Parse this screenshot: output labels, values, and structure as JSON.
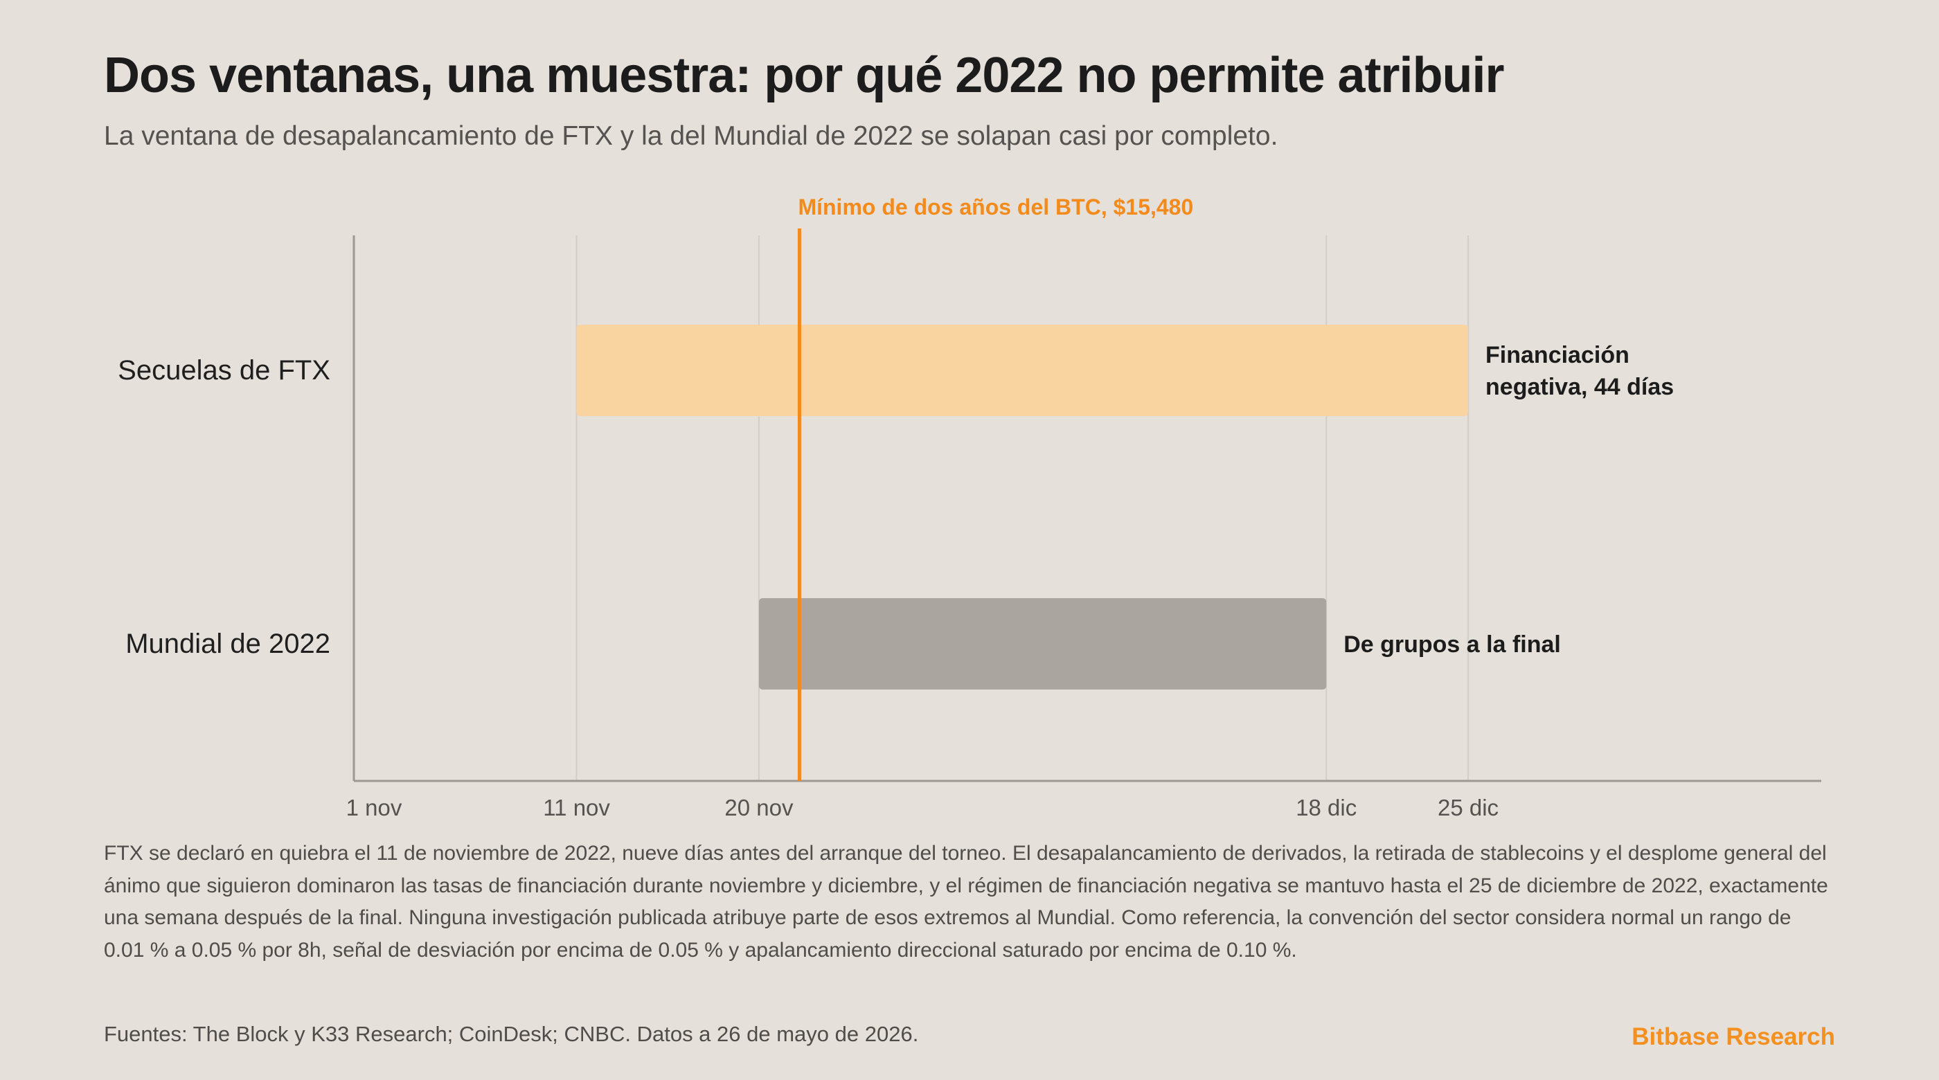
{
  "header": {
    "title": "Dos ventanas, una muestra: por qué 2022 no permite atribuir",
    "subtitle": "La ventana de desapalancamiento de FTX y la del Mundial de 2022 se solapan casi por completo."
  },
  "chart_data": {
    "type": "timeline",
    "x_unit": "date (2022)",
    "xlim": [
      "2022-11-01",
      "2023-01-05"
    ],
    "ticks": [
      {
        "date": "2022-11-01",
        "label": "1 nov"
      },
      {
        "date": "2022-11-11",
        "label": "11 nov"
      },
      {
        "date": "2022-11-20",
        "label": "20 nov"
      },
      {
        "date": "2022-12-18",
        "label": "18 dic"
      },
      {
        "date": "2022-12-25",
        "label": "25 dic"
      }
    ],
    "grid": true,
    "bars": [
      {
        "category": "Secuelas de FTX",
        "start": "2022-11-11",
        "end": "2022-12-25",
        "annotation": [
          "Financiación",
          "negativa, 44 días"
        ],
        "color": "#f9d4a0"
      },
      {
        "category": "Mundial de 2022",
        "start": "2022-11-20",
        "end": "2022-12-18",
        "annotation": [
          "De grupos a la final"
        ],
        "color": "#aaa59f"
      }
    ],
    "marker": {
      "date": "2022-11-22",
      "label": "Mínimo de dos años del BTC, $15,480",
      "color": "#f28a1c"
    }
  },
  "footer": {
    "note": "FTX se declaró en quiebra el 11 de noviembre de 2022, nueve días antes del arranque del torneo. El desapalancamiento de derivados, la retirada de stablecoins y el desplome general del ánimo que siguieron dominaron las tasas de financiación durante noviembre y diciembre, y el régimen de financiación negativa se mantuvo hasta el 25 de diciembre de 2022, exactamente una semana después de la final. Ninguna investigación publicada atribuye parte de esos extremos al Mundial. Como referencia, la convención del sector considera normal un rango de 0.01 % a 0.05 % por 8h, señal de desviación por encima de 0.05 % y apalancamiento direccional saturado por encima de 0.10 %.",
    "sources": "Fuentes: The Block y K33 Research; CoinDesk; CNBC. Datos a 26 de mayo de 2026.",
    "brand": "Bitbase Research"
  }
}
